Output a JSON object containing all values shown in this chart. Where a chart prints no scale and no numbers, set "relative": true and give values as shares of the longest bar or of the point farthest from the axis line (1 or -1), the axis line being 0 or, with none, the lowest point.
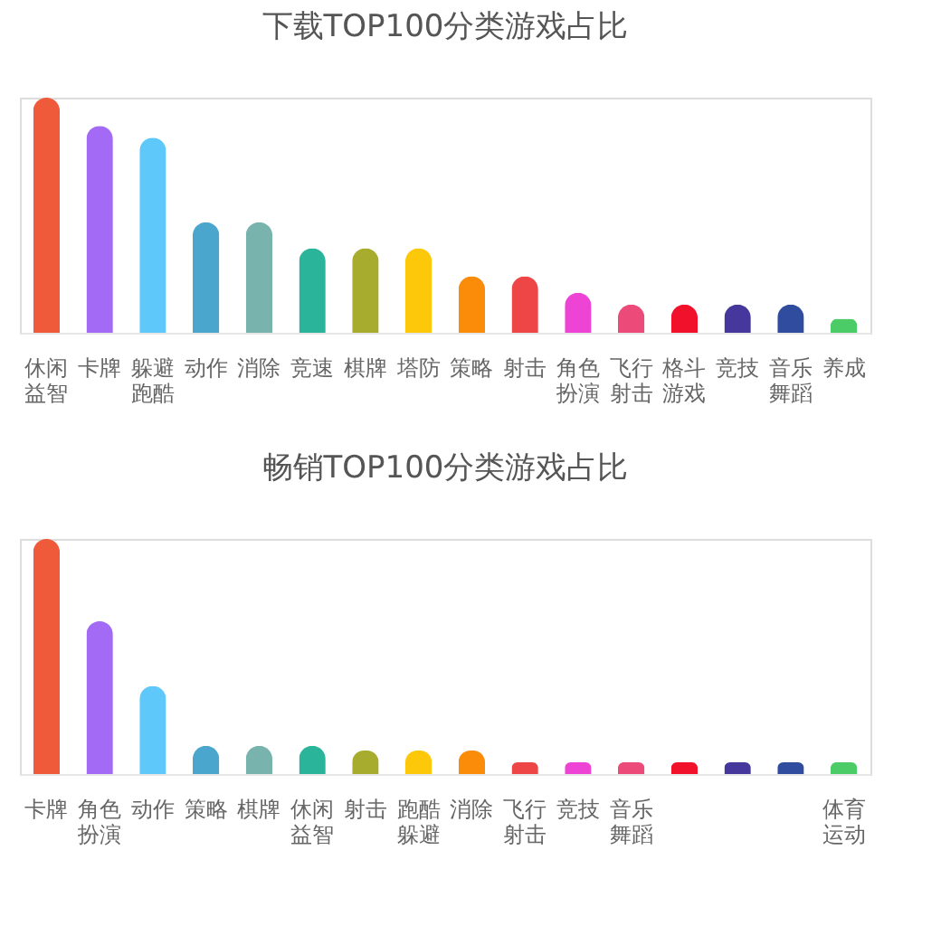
{
  "chart_data": [
    {
      "type": "bar",
      "relative": true,
      "title": "下载TOP100分类游戏占比",
      "categories": [
        "休闲益智",
        "卡牌",
        "躲避跑酷",
        "动作",
        "消除",
        "竞速",
        "棋牌",
        "塔防",
        "策略",
        "射击",
        "角色扮演",
        "飞行射击",
        "格斗游戏",
        "竞技",
        "音乐舞蹈",
        "养成"
      ],
      "values": [
        1,
        0.88,
        0.83,
        0.47,
        0.47,
        0.36,
        0.36,
        0.36,
        0.24,
        0.24,
        0.17,
        0.12,
        0.12,
        0.12,
        0.12,
        0.06
      ],
      "colors": [
        "#ee5a3a",
        "#a26af5",
        "#5fc8fb",
        "#4aa6cc",
        "#78b3ae",
        "#2ab59a",
        "#a7ac2e",
        "#fec80a",
        "#fb8c0a",
        "#ee4646",
        "#ee44d6",
        "#ec4a78",
        "#f2112a",
        "#46379c",
        "#2f4c9e",
        "#4ccc66"
      ]
    },
    {
      "type": "bar",
      "relative": true,
      "title": "畅销TOP100分类游戏占比",
      "categories": [
        "卡牌",
        "角色扮演",
        "动作",
        "策略",
        "棋牌",
        "休闲益智",
        "射击",
        "跑酷躲避",
        "消除",
        "飞行射击",
        "竞技",
        "音乐舞蹈",
        null,
        null,
        null,
        "体育运动"
      ],
      "values": [
        1,
        0.65,
        0.375,
        0.12,
        0.12,
        0.12,
        0.1,
        0.1,
        0.1,
        0.05,
        0.05,
        0.05,
        0.05,
        0.05,
        0.05,
        0.05
      ],
      "colors": [
        "#ee5a3a",
        "#a26af5",
        "#5fc8fb",
        "#4aa6cc",
        "#78b3ae",
        "#2ab59a",
        "#a7ac2e",
        "#fec80a",
        "#fb8c0a",
        "#ee4646",
        "#ee44d6",
        "#ec4a78",
        "#f2112a",
        "#46379c",
        "#2f4c9e",
        "#4ccc66"
      ]
    }
  ]
}
